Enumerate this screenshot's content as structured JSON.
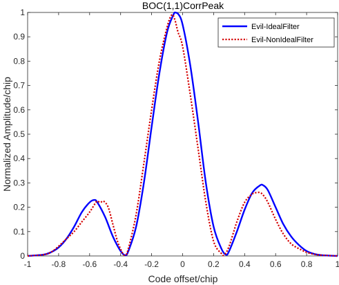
{
  "chart_data": {
    "type": "line",
    "title": "BOC(1,1)CorrPeak",
    "xlabel": "Code offset/chip",
    "ylabel": "Normalized Amplitude/chip",
    "xlim": [
      -1,
      1
    ],
    "ylim": [
      0,
      1
    ],
    "xticks": [
      -1,
      -0.8,
      -0.6,
      -0.4,
      -0.2,
      0,
      0.2,
      0.4,
      0.6,
      0.8,
      1
    ],
    "xtick_labels": [
      "-1",
      "-0.8",
      "-0.6",
      "-0.4",
      "-0.2",
      "0",
      "0.2",
      "0.4",
      "0.6",
      "0.8",
      "1"
    ],
    "yticks": [
      0,
      0.1,
      0.2,
      0.3,
      0.4,
      0.5,
      0.6,
      0.7,
      0.8,
      0.9,
      1
    ],
    "ytick_labels": [
      "0",
      "0.1",
      "0.2",
      "0.3",
      "0.4",
      "0.5",
      "0.6",
      "0.7",
      "0.8",
      "0.9",
      "1"
    ],
    "grid": false,
    "legend_position": "top-right",
    "series": [
      {
        "name": "Evil-IdealFilter",
        "color": "#0000ff",
        "style": "solid",
        "x": [
          -1,
          -0.9,
          -0.85,
          -0.8,
          -0.75,
          -0.7,
          -0.65,
          -0.6,
          -0.57,
          -0.55,
          -0.5,
          -0.45,
          -0.4,
          -0.37,
          -0.35,
          -0.3,
          -0.25,
          -0.2,
          -0.15,
          -0.1,
          -0.06,
          -0.05,
          -0.03,
          0,
          0.05,
          0.1,
          0.15,
          0.2,
          0.25,
          0.28,
          0.3,
          0.35,
          0.4,
          0.45,
          0.5,
          0.52,
          0.55,
          0.6,
          0.65,
          0.7,
          0.75,
          0.8,
          0.85,
          0.9,
          1
        ],
        "y": [
          0,
          0.005,
          0.015,
          0.035,
          0.07,
          0.12,
          0.18,
          0.22,
          0.23,
          0.22,
          0.16,
          0.08,
          0.02,
          0.003,
          0.02,
          0.12,
          0.3,
          0.53,
          0.75,
          0.92,
          0.99,
          1.0,
          0.995,
          0.95,
          0.78,
          0.55,
          0.3,
          0.12,
          0.03,
          0.005,
          0.02,
          0.1,
          0.19,
          0.26,
          0.29,
          0.29,
          0.27,
          0.2,
          0.13,
          0.08,
          0.045,
          0.02,
          0.008,
          0.003,
          0
        ]
      },
      {
        "name": "Evil-NonIdealFilter",
        "color": "#d40000",
        "style": "dotted",
        "x": [
          -1,
          -0.9,
          -0.85,
          -0.8,
          -0.75,
          -0.7,
          -0.65,
          -0.6,
          -0.56,
          -0.55,
          -0.53,
          -0.51,
          -0.48,
          -0.45,
          -0.42,
          -0.39,
          -0.37,
          -0.35,
          -0.3,
          -0.25,
          -0.2,
          -0.15,
          -0.1,
          -0.07,
          -0.05,
          -0.03,
          0,
          0.05,
          0.1,
          0.15,
          0.2,
          0.25,
          0.27,
          0.3,
          0.35,
          0.4,
          0.45,
          0.48,
          0.5,
          0.52,
          0.55,
          0.6,
          0.65,
          0.7,
          0.75,
          0.8,
          0.85,
          0.9,
          1
        ],
        "y": [
          0,
          0.005,
          0.015,
          0.04,
          0.07,
          0.1,
          0.14,
          0.18,
          0.22,
          0.225,
          0.22,
          0.225,
          0.2,
          0.13,
          0.06,
          0.015,
          0.003,
          0.03,
          0.17,
          0.38,
          0.6,
          0.8,
          0.94,
          0.99,
          0.97,
          0.92,
          0.86,
          0.66,
          0.44,
          0.22,
          0.06,
          0.01,
          0.005,
          0.04,
          0.14,
          0.22,
          0.255,
          0.26,
          0.26,
          0.25,
          0.22,
          0.15,
          0.09,
          0.05,
          0.03,
          0.015,
          0.007,
          0.003,
          0
        ]
      }
    ]
  }
}
